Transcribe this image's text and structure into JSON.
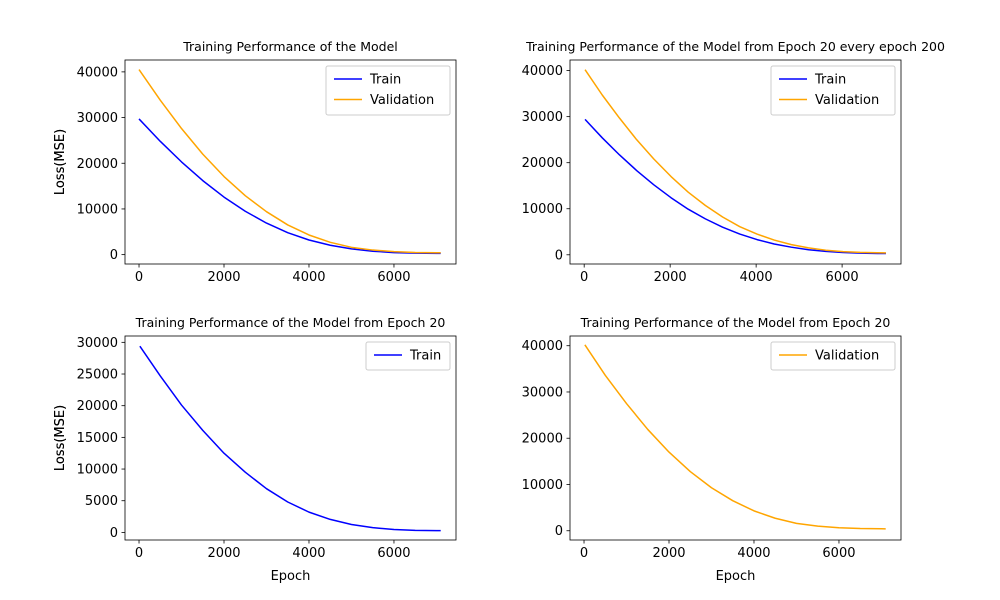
{
  "colors": {
    "train": "#0000ff",
    "validation": "#ffa500",
    "axes": "#000000"
  },
  "chart_data": [
    {
      "type": "line",
      "title": "Training Performance of the Model",
      "xlabel": "",
      "ylabel": "Loss(MSE)",
      "xlim": [
        -330,
        7460
      ],
      "ylim": [
        -2050,
        42600
      ],
      "xticks": [
        0,
        2000,
        4000,
        6000
      ],
      "yticks": [
        0,
        10000,
        20000,
        30000,
        40000
      ],
      "legend": "top-right",
      "series": [
        {
          "name": "Train",
          "color": "#0000ff",
          "x": [
            0,
            500,
            1000,
            1500,
            2000,
            2500,
            3000,
            3500,
            4000,
            4500,
            5000,
            5500,
            6000,
            6500,
            7000,
            7100
          ],
          "y": [
            29700,
            24800,
            20300,
            16200,
            12600,
            9500,
            6900,
            4800,
            3200,
            2050,
            1250,
            750,
            450,
            320,
            280,
            275
          ]
        },
        {
          "name": "Validation",
          "color": "#ffa500",
          "x": [
            0,
            500,
            1000,
            1500,
            2000,
            2500,
            3000,
            3500,
            4000,
            4500,
            5000,
            5500,
            6000,
            6500,
            7000,
            7100
          ],
          "y": [
            40500,
            33800,
            27600,
            22000,
            17100,
            12900,
            9400,
            6500,
            4300,
            2700,
            1600,
            1000,
            650,
            480,
            420,
            410
          ]
        }
      ]
    },
    {
      "type": "line",
      "title": "Training Performance of the Model from Epoch 20 every epoch 200",
      "xlabel": "",
      "ylabel": "Loss(MSE)",
      "xlim": [
        -330,
        7370
      ],
      "ylim": [
        -2000,
        42300
      ],
      "xticks": [
        0,
        2000,
        4000,
        6000
      ],
      "yticks": [
        0,
        10000,
        20000,
        30000,
        40000
      ],
      "legend": "top-right",
      "series": [
        {
          "name": "Train",
          "color": "#0000ff",
          "x": [
            20,
            420,
            820,
            1220,
            1620,
            2020,
            2420,
            2820,
            3220,
            3620,
            4020,
            4420,
            4820,
            5220,
            5620,
            6020,
            6420,
            6820,
            7020
          ],
          "y": [
            29400,
            25400,
            21700,
            18300,
            15200,
            12400,
            9900,
            7800,
            6000,
            4500,
            3300,
            2350,
            1650,
            1100,
            750,
            500,
            360,
            290,
            275
          ]
        },
        {
          "name": "Validation",
          "color": "#ffa500",
          "x": [
            20,
            420,
            820,
            1220,
            1620,
            2020,
            2420,
            2820,
            3220,
            3620,
            4020,
            4420,
            4820,
            5220,
            5620,
            6020,
            6420,
            6820,
            7020
          ],
          "y": [
            40200,
            34700,
            29700,
            25000,
            20800,
            17000,
            13600,
            10700,
            8200,
            6100,
            4500,
            3200,
            2200,
            1500,
            1000,
            700,
            520,
            440,
            420
          ]
        }
      ]
    },
    {
      "type": "line",
      "title": "Training Performance of the Model from Epoch 20",
      "xlabel": "Epoch",
      "ylabel": "Loss(MSE)",
      "xlim": [
        -330,
        7460
      ],
      "ylim": [
        -1200,
        31000
      ],
      "xticks": [
        0,
        2000,
        4000,
        6000
      ],
      "yticks": [
        0,
        5000,
        10000,
        15000,
        20000,
        25000,
        30000
      ],
      "legend": "top-right",
      "series": [
        {
          "name": "Train",
          "color": "#0000ff",
          "x": [
            20,
            500,
            1000,
            1500,
            2000,
            2500,
            3000,
            3500,
            4000,
            4500,
            5000,
            5500,
            6000,
            6500,
            7000,
            7100
          ],
          "y": [
            29400,
            24700,
            20100,
            16100,
            12500,
            9500,
            6900,
            4800,
            3200,
            2050,
            1250,
            750,
            450,
            320,
            280,
            275
          ]
        }
      ]
    },
    {
      "type": "line",
      "title": "Training Performance of the Model from Epoch 20",
      "xlabel": "Epoch",
      "ylabel": "Loss(MSE)",
      "xlim": [
        -330,
        7460
      ],
      "ylim": [
        -2000,
        42100
      ],
      "xticks": [
        0,
        2000,
        4000,
        6000
      ],
      "yticks": [
        0,
        10000,
        20000,
        30000,
        40000
      ],
      "legend": "top-right",
      "series": [
        {
          "name": "Validation",
          "color": "#ffa500",
          "x": [
            20,
            500,
            1000,
            1500,
            2000,
            2500,
            3000,
            3500,
            4000,
            4500,
            5000,
            5500,
            6000,
            6500,
            7000,
            7100
          ],
          "y": [
            40200,
            33600,
            27500,
            21900,
            17000,
            12800,
            9300,
            6500,
            4300,
            2700,
            1600,
            1000,
            650,
            480,
            420,
            410
          ]
        }
      ]
    }
  ]
}
